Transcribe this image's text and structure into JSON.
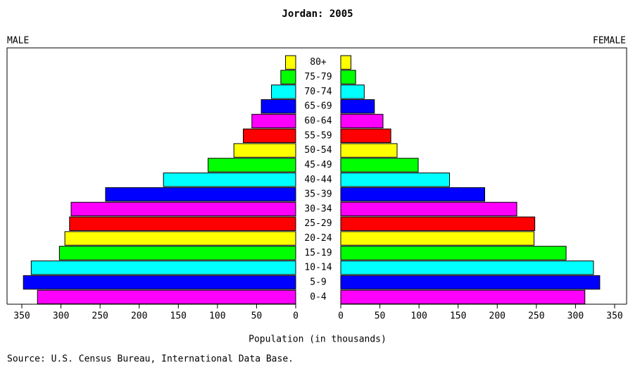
{
  "chart_data": {
    "type": "pyramid",
    "title": "Jordan: 2005",
    "xlabel": "Population (in thousands)",
    "source": "Source: U.S. Census Bureau, International Data Base.",
    "categories": [
      "0-4",
      "5-9",
      "10-14",
      "15-19",
      "20-24",
      "25-29",
      "30-34",
      "35-39",
      "40-44",
      "45-49",
      "50-54",
      "55-59",
      "60-64",
      "65-69",
      "70-74",
      "75-79",
      "80+"
    ],
    "colors": [
      "#ff00ff",
      "#0000ff",
      "#00ffff",
      "#00ff00",
      "#ffff00",
      "#ff0000",
      "#ff00ff",
      "#0000ff",
      "#00ffff",
      "#00ff00",
      "#ffff00",
      "#ff0000",
      "#ff00ff",
      "#0000ff",
      "#00ffff",
      "#00ff00",
      "#ffff00"
    ],
    "series": [
      {
        "name": "MALE",
        "values": [
          330,
          348,
          338,
          302,
          295,
          289,
          287,
          243,
          169,
          112,
          79,
          67,
          56,
          44,
          31,
          19,
          13
        ]
      },
      {
        "name": "FEMALE",
        "values": [
          312,
          331,
          323,
          288,
          247,
          248,
          225,
          184,
          139,
          99,
          72,
          64,
          54,
          43,
          30,
          19,
          13
        ]
      }
    ],
    "xlim": [
      0,
      350
    ],
    "xticks": [
      0,
      50,
      100,
      150,
      200,
      250,
      300,
      350
    ]
  }
}
